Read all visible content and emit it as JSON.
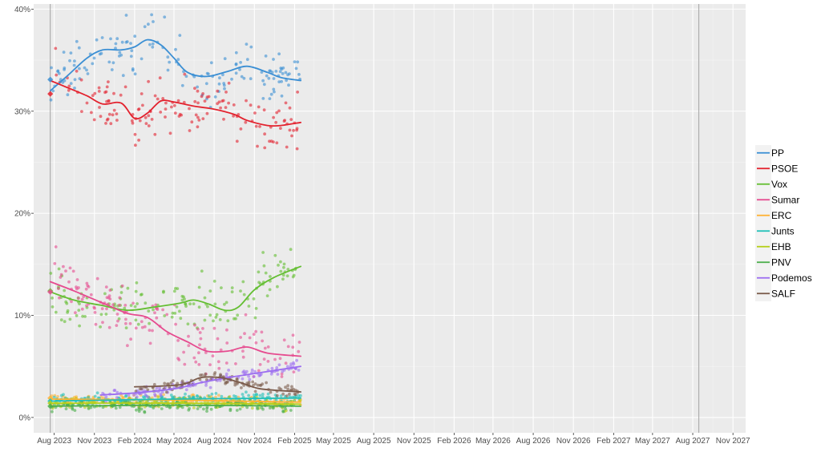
{
  "chart_data": {
    "type": "scatter",
    "title": "",
    "xlabel": "",
    "ylabel": "",
    "x_range": [
      "2023-06-15",
      "2027-11-30"
    ],
    "y_range": [
      -1.5,
      40.5
    ],
    "y_ticks": [
      {
        "value": 0,
        "label": "0%"
      },
      {
        "value": 10,
        "label": "10%"
      },
      {
        "value": 20,
        "label": "20%"
      },
      {
        "value": 30,
        "label": "30%"
      },
      {
        "value": 40,
        "label": "40%"
      }
    ],
    "x_ticks": [
      {
        "date": "2023-08-01",
        "label": "Aug 2023"
      },
      {
        "date": "2023-11-01",
        "label": "Nov 2023"
      },
      {
        "date": "2024-02-01",
        "label": "Feb 2024"
      },
      {
        "date": "2024-05-01",
        "label": "May 2024"
      },
      {
        "date": "2024-08-01",
        "label": "Aug 2024"
      },
      {
        "date": "2024-11-01",
        "label": "Nov 2024"
      },
      {
        "date": "2025-02-01",
        "label": "Feb 2025"
      },
      {
        "date": "2025-05-01",
        "label": "May 2025"
      },
      {
        "date": "2025-08-01",
        "label": "Aug 2025"
      },
      {
        "date": "2025-11-01",
        "label": "Nov 2025"
      },
      {
        "date": "2026-02-01",
        "label": "Feb 2026"
      },
      {
        "date": "2026-05-01",
        "label": "May 2026"
      },
      {
        "date": "2026-08-01",
        "label": "Aug 2026"
      },
      {
        "date": "2026-11-01",
        "label": "Nov 2026"
      },
      {
        "date": "2027-02-01",
        "label": "Feb 2027"
      },
      {
        "date": "2027-05-01",
        "label": "May 2027"
      },
      {
        "date": "2027-08-01",
        "label": "Aug 2027"
      },
      {
        "date": "2027-11-01",
        "label": "Nov 2027"
      }
    ],
    "vertical_markers": [
      "2023-07-23",
      "2027-08-15"
    ],
    "grid": true,
    "legend_position": "right",
    "series": [
      {
        "name": "PP",
        "color": "#3b8fd4",
        "election_result": 33.1,
        "trend": [
          [
            "2023-07-23",
            32.0
          ],
          [
            "2023-09-01",
            33.5
          ],
          [
            "2023-10-15",
            35.2
          ],
          [
            "2023-11-20",
            36.0
          ],
          [
            "2024-01-01",
            36.0
          ],
          [
            "2024-02-01",
            36.3
          ],
          [
            "2024-03-01",
            37.0
          ],
          [
            "2024-04-01",
            36.5
          ],
          [
            "2024-05-01",
            35.2
          ],
          [
            "2024-06-01",
            33.8
          ],
          [
            "2024-07-15",
            33.4
          ],
          [
            "2024-09-01",
            33.9
          ],
          [
            "2024-10-15",
            34.4
          ],
          [
            "2024-12-01",
            33.8
          ],
          [
            "2025-01-01",
            33.3
          ],
          [
            "2025-02-15",
            33.0
          ]
        ],
        "poll_base": 34.5,
        "poll_spread": 4.0
      },
      {
        "name": "PSOE",
        "color": "#e3222e",
        "election_result": 31.7,
        "trend": [
          [
            "2023-07-23",
            33.0
          ],
          [
            "2023-09-01",
            32.3
          ],
          [
            "2023-10-15",
            31.5
          ],
          [
            "2023-11-20",
            30.7
          ],
          [
            "2024-01-01",
            30.8
          ],
          [
            "2024-02-01",
            29.3
          ],
          [
            "2024-03-01",
            29.8
          ],
          [
            "2024-04-01",
            31.0
          ],
          [
            "2024-05-01",
            30.9
          ],
          [
            "2024-06-15",
            30.5
          ],
          [
            "2024-08-01",
            30.2
          ],
          [
            "2024-09-15",
            29.7
          ],
          [
            "2024-10-15",
            29.1
          ],
          [
            "2024-12-01",
            28.6
          ],
          [
            "2025-01-01",
            28.6
          ],
          [
            "2025-02-15",
            28.9
          ]
        ],
        "poll_base": 30.3,
        "poll_spread": 3.5
      },
      {
        "name": "Vox",
        "color": "#63be31",
        "election_result": 12.4,
        "trend": [
          [
            "2023-07-23",
            12.3
          ],
          [
            "2023-09-15",
            11.5
          ],
          [
            "2023-11-15",
            11.0
          ],
          [
            "2024-01-15",
            10.5
          ],
          [
            "2024-03-15",
            10.8
          ],
          [
            "2024-05-15",
            11.2
          ],
          [
            "2024-06-15",
            11.5
          ],
          [
            "2024-07-20",
            11.1
          ],
          [
            "2024-08-25",
            10.5
          ],
          [
            "2024-09-25",
            10.8
          ],
          [
            "2024-11-01",
            12.5
          ],
          [
            "2024-12-15",
            13.7
          ],
          [
            "2025-02-15",
            14.8
          ]
        ],
        "poll_base": 11.5,
        "poll_spread": 2.5
      },
      {
        "name": "Sumar",
        "color": "#e64b8f",
        "election_result": 12.3,
        "trend": [
          [
            "2023-07-23",
            13.3
          ],
          [
            "2023-09-15",
            12.4
          ],
          [
            "2023-11-15",
            11.3
          ],
          [
            "2024-01-15",
            10.2
          ],
          [
            "2024-03-01",
            9.8
          ],
          [
            "2024-04-15",
            8.4
          ],
          [
            "2024-06-01",
            7.4
          ],
          [
            "2024-07-15",
            6.5
          ],
          [
            "2024-09-01",
            6.5
          ],
          [
            "2024-10-15",
            6.9
          ],
          [
            "2024-12-01",
            6.3
          ],
          [
            "2025-02-15",
            6.0
          ]
        ],
        "poll_base": 9.0,
        "poll_spread": 2.5
      },
      {
        "name": "ERC",
        "color": "#ffb232",
        "election_result": 1.9,
        "trend": [
          [
            "2023-07-23",
            1.8
          ],
          [
            "2024-05-01",
            1.7
          ],
          [
            "2025-02-15",
            1.5
          ]
        ],
        "poll_base": 1.7,
        "poll_spread": 0.6
      },
      {
        "name": "Junts",
        "color": "#20c0b8",
        "election_result": 1.6,
        "trend": [
          [
            "2023-07-23",
            1.6
          ],
          [
            "2024-05-01",
            1.8
          ],
          [
            "2025-02-15",
            1.9
          ]
        ],
        "poll_base": 1.7,
        "poll_spread": 0.6
      },
      {
        "name": "EHB",
        "color": "#b5cf18",
        "election_result": 1.4,
        "trend": [
          [
            "2023-07-23",
            1.4
          ],
          [
            "2024-05-01",
            1.4
          ],
          [
            "2025-02-15",
            1.3
          ]
        ],
        "poll_base": 1.4,
        "poll_spread": 0.5
      },
      {
        "name": "PNV",
        "color": "#4aae4a",
        "election_result": 1.1,
        "trend": [
          [
            "2023-07-23",
            1.1
          ],
          [
            "2024-05-01",
            1.2
          ],
          [
            "2025-02-15",
            1.1
          ]
        ],
        "poll_base": 1.1,
        "poll_spread": 0.5
      },
      {
        "name": "Podemos",
        "color": "#9c6ef0",
        "election_result": null,
        "trend": [
          [
            "2023-11-15",
            2.2
          ],
          [
            "2024-02-01",
            2.4
          ],
          [
            "2024-05-01",
            2.8
          ],
          [
            "2024-07-01",
            3.4
          ],
          [
            "2024-09-01",
            3.9
          ],
          [
            "2024-11-01",
            4.3
          ],
          [
            "2025-02-15",
            5.0
          ]
        ],
        "poll_base": 3.5,
        "poll_spread": 1.2
      },
      {
        "name": "SALF",
        "color": "#7a5a4a",
        "election_result": null,
        "trend": [
          [
            "2024-02-01",
            3.0
          ],
          [
            "2024-05-15",
            3.2
          ],
          [
            "2024-07-01",
            3.9
          ],
          [
            "2024-08-15",
            3.9
          ],
          [
            "2024-10-01",
            3.4
          ],
          [
            "2024-11-15",
            2.8
          ],
          [
            "2025-02-15",
            2.5
          ]
        ],
        "poll_base": 3.1,
        "poll_spread": 1.2
      }
    ]
  }
}
